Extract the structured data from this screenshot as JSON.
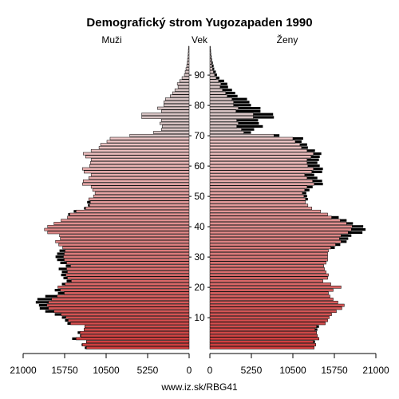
{
  "chart_data": {
    "type": "population-pyramid",
    "title": "Demografický strom Yugozapaden 1990",
    "left_label": "Muži",
    "center_label": "Vek",
    "right_label": "Ženy",
    "footer": "www.iz.sk/RBG41",
    "x_ticks_left": [
      "21000",
      "15750",
      "10500",
      "5250",
      "0"
    ],
    "x_ticks_right": [
      "0",
      "5250",
      "10500",
      "15750",
      "21000"
    ],
    "x_tick_values": [
      0,
      5250,
      10500,
      15750,
      21000
    ],
    "xlim": [
      0,
      21000
    ],
    "age_ticks": [
      "10",
      "20",
      "30",
      "40",
      "50",
      "60",
      "70",
      "80",
      "90"
    ],
    "age_tick_values": [
      10,
      20,
      30,
      40,
      50,
      60,
      70,
      80,
      90
    ],
    "age_range": [
      0,
      100
    ],
    "colors": {
      "male_young": "#d03c3c",
      "female_young": "#d03c3c",
      "old": "#d8c4c4",
      "excess": "#000000"
    },
    "series": [
      {
        "name": "Muži",
        "values": [
          13000,
          13500,
          13000,
          14300,
          13700,
          13800,
          13300,
          13200,
          15000,
          15300,
          15600,
          16200,
          17100,
          17800,
          18000,
          17800,
          17400,
          16700,
          15800,
          16300,
          16600,
          15700,
          14900,
          15400,
          15600,
          15400,
          15500,
          15000,
          15500,
          15800,
          15900,
          15800,
          15700,
          16000,
          16500,
          16900,
          16300,
          16400,
          17900,
          18300,
          17900,
          17100,
          16200,
          15400,
          15100,
          14300,
          13100,
          12600,
          12500,
          12700,
          12100,
          11900,
          12200,
          12400,
          13500,
          13400,
          12700,
          12400,
          13300,
          13500,
          12600,
          12500,
          12400,
          13100,
          13400,
          12400,
          11400,
          11200,
          10400,
          10000,
          7500,
          4500,
          3500,
          3400,
          3700,
          3500,
          6000,
          6000,
          3500,
          4000,
          3200,
          3200,
          3000,
          2400,
          2100,
          1800,
          1400,
          1500,
          1200,
          900,
          600,
          500,
          400,
          300,
          250,
          200,
          150,
          120,
          100,
          80
        ]
      },
      {
        "name": "Ženy",
        "values": [
          13200,
          13400,
          13100,
          13800,
          13600,
          13500,
          13300,
          13500,
          14600,
          14900,
          15100,
          15400,
          16000,
          16700,
          17000,
          16200,
          15600,
          15200,
          15000,
          15600,
          16600,
          15300,
          14300,
          14900,
          15000,
          14700,
          14500,
          14400,
          14700,
          14900,
          14900,
          14900,
          15000,
          15300,
          15900,
          16600,
          16400,
          16600,
          17500,
          17900,
          18000,
          17300,
          16500,
          15400,
          14900,
          14000,
          12900,
          12400,
          12100,
          12100,
          11900,
          11700,
          12000,
          12300,
          13200,
          13000,
          12300,
          12000,
          12900,
          13100,
          12400,
          12300,
          12300,
          12800,
          13100,
          12300,
          11600,
          11400,
          10800,
          10500,
          8100,
          4300,
          4000,
          3400,
          3600,
          3400,
          5500,
          5500,
          3300,
          3600,
          3000,
          3000,
          2800,
          2200,
          2000,
          1600,
          1300,
          1400,
          1100,
          800,
          600,
          450,
          350,
          270,
          220,
          170,
          130,
          100,
          80,
          60
        ]
      },
      {
        "name": "Ženy-excess",
        "values": [
          0,
          0,
          200,
          0,
          0,
          0,
          300,
          300,
          0,
          0,
          0,
          0,
          0,
          0,
          0,
          0,
          0,
          0,
          0,
          0,
          0,
          0,
          0,
          0,
          0,
          0,
          0,
          0,
          0,
          0,
          0,
          0,
          0,
          500,
          600,
          700,
          1100,
          1300,
          1800,
          1800,
          1400,
          800,
          800,
          900,
          0,
          0,
          0,
          0,
          0,
          300,
          400,
          500,
          600,
          700,
          1100,
          1200,
          1300,
          1200,
          1300,
          1200,
          1500,
          1300,
          1500,
          1100,
          1000,
          1000,
          800,
          900,
          800,
          1300,
          700,
          900,
          1600,
          3300,
          2600,
          2700,
          2600,
          2500,
          3100,
          2800,
          2200,
          2000,
          1900,
          1300,
          1200,
          1200,
          1000,
          800,
          700,
          400,
          300,
          300,
          200,
          200,
          150,
          100,
          80,
          60,
          50,
          40
        ]
      },
      {
        "name": "Muži-excess",
        "values": [
          200,
          100,
          0,
          500,
          100,
          300,
          0,
          0,
          400,
          400,
          500,
          800,
          1100,
          1100,
          1000,
          1600,
          1800,
          1500,
          800,
          700,
          0,
          400,
          600,
          500,
          600,
          700,
          1000,
          600,
          800,
          900,
          1000,
          900,
          700,
          0,
          0,
          0,
          0,
          0,
          0,
          0,
          0,
          0,
          0,
          0,
          200,
          300,
          200,
          200,
          400,
          0,
          0,
          0,
          0,
          0,
          0,
          0,
          0,
          0,
          0,
          0,
          0,
          0,
          0,
          0,
          0,
          0,
          0,
          0,
          0,
          0,
          0,
          0,
          0,
          0,
          0,
          0,
          0,
          0,
          0,
          0,
          0,
          0,
          0,
          0,
          0,
          0,
          0,
          0,
          0,
          0,
          0,
          0,
          0,
          0,
          0,
          0,
          0,
          0,
          0,
          0
        ]
      }
    ]
  }
}
